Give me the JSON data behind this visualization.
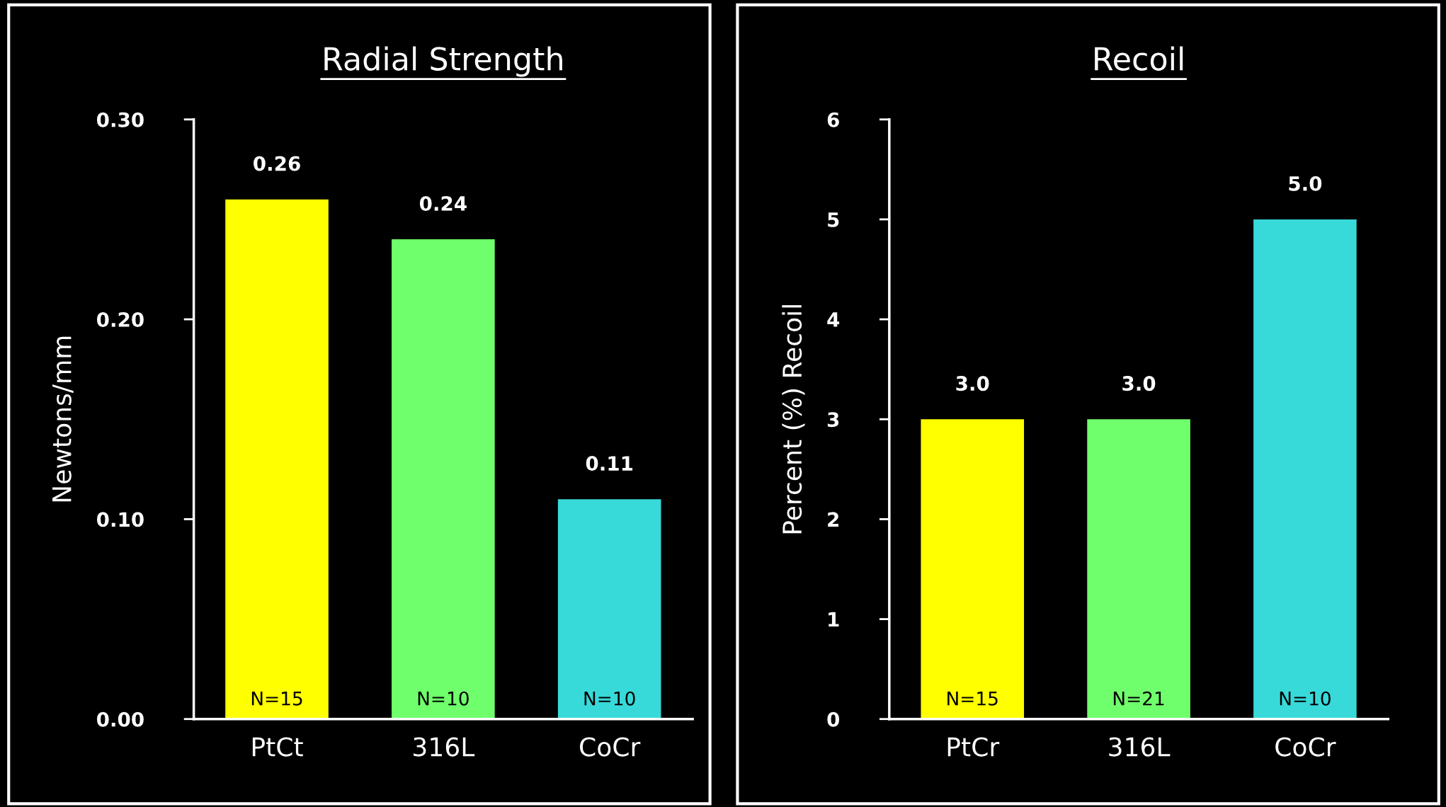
{
  "chart_data": [
    {
      "type": "bar",
      "title": "Radial Strength",
      "ylabel": "Newtons/mm",
      "categories": [
        "PtCt",
        "316L",
        "CoCr"
      ],
      "values": [
        0.26,
        0.24,
        0.11
      ],
      "colors": [
        "#ffff00",
        "#70ff6c",
        "#38d9d9"
      ],
      "value_labels": [
        "0.26",
        "0.24",
        "0.11"
      ],
      "ylim": [
        0,
        0.3
      ],
      "yticks": [
        {
          "value": 0,
          "label": "0.00"
        },
        {
          "value": 0.1,
          "label": "0.10"
        },
        {
          "value": 0.2,
          "label": "0.20"
        },
        {
          "value": 0.3,
          "label": "0.30"
        }
      ],
      "grid": false,
      "legend": false,
      "annotations": [
        {
          "text": "N=15",
          "x": "PtCt",
          "y": 0
        },
        {
          "text": "N=10",
          "x": "316L",
          "y": 0
        },
        {
          "text": "N=10",
          "x": "CoCr",
          "y": 0
        }
      ]
    },
    {
      "type": "bar",
      "title": "Recoil",
      "ylabel": "Percent (%) Recoil",
      "categories": [
        "PtCr",
        "316L",
        "CoCr"
      ],
      "values": [
        3.0,
        3.0,
        5.0
      ],
      "colors": [
        "#ffff00",
        "#70ff6c",
        "#38d9d9"
      ],
      "value_labels": [
        "3.0",
        "3.0",
        "5.0"
      ],
      "ylim": [
        0,
        6
      ],
      "yticks": [
        0,
        1,
        2,
        3,
        4,
        5,
        6
      ],
      "grid": false,
      "legend": false,
      "annotations": [
        {
          "text": "N=15",
          "x": "PtCr",
          "y": 0
        },
        {
          "text": "N=21",
          "x": "316L",
          "y": 0
        },
        {
          "text": "N=10",
          "x": "CoCr",
          "y": 0
        }
      ]
    }
  ]
}
